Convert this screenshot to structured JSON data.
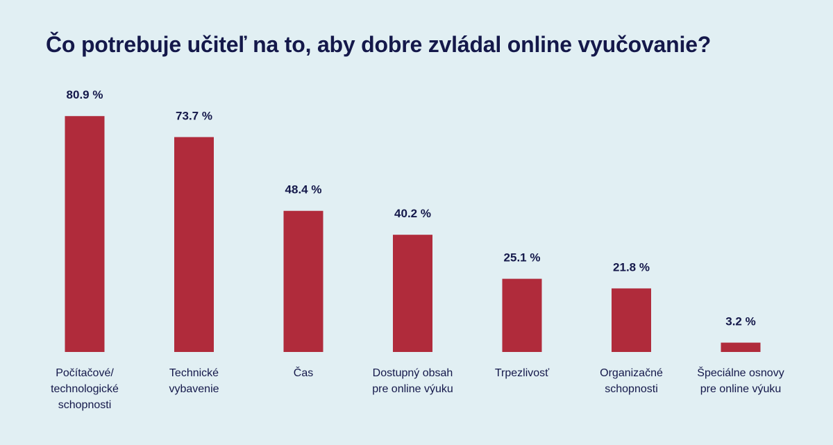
{
  "chart_data": {
    "type": "bar",
    "title": "Čo potrebuje učiteľ na to, aby dobre zvládal online vyučovanie?",
    "categories": [
      [
        "Počítačové/",
        "technologické",
        "schopnosti"
      ],
      [
        "Technické",
        "vybavenie"
      ],
      [
        "Čas"
      ],
      [
        "Dostupný obsah",
        "pre online výuku"
      ],
      [
        "Trpezlivosť"
      ],
      [
        "Organizačné",
        "schopnosti"
      ],
      [
        "Špeciálne osnovy",
        "pre online výuku"
      ]
    ],
    "values": [
      80.9,
      73.7,
      48.4,
      40.2,
      25.1,
      21.8,
      3.2
    ],
    "value_labels": [
      "80.9 %",
      "73.7 %",
      "48.4 %",
      "40.2 %",
      "25.1 %",
      "21.8 %",
      "3.2 %"
    ],
    "ylim": [
      0,
      100
    ],
    "grid": false,
    "bar_color": "#b02b3b",
    "text_color": "#14184a"
  }
}
